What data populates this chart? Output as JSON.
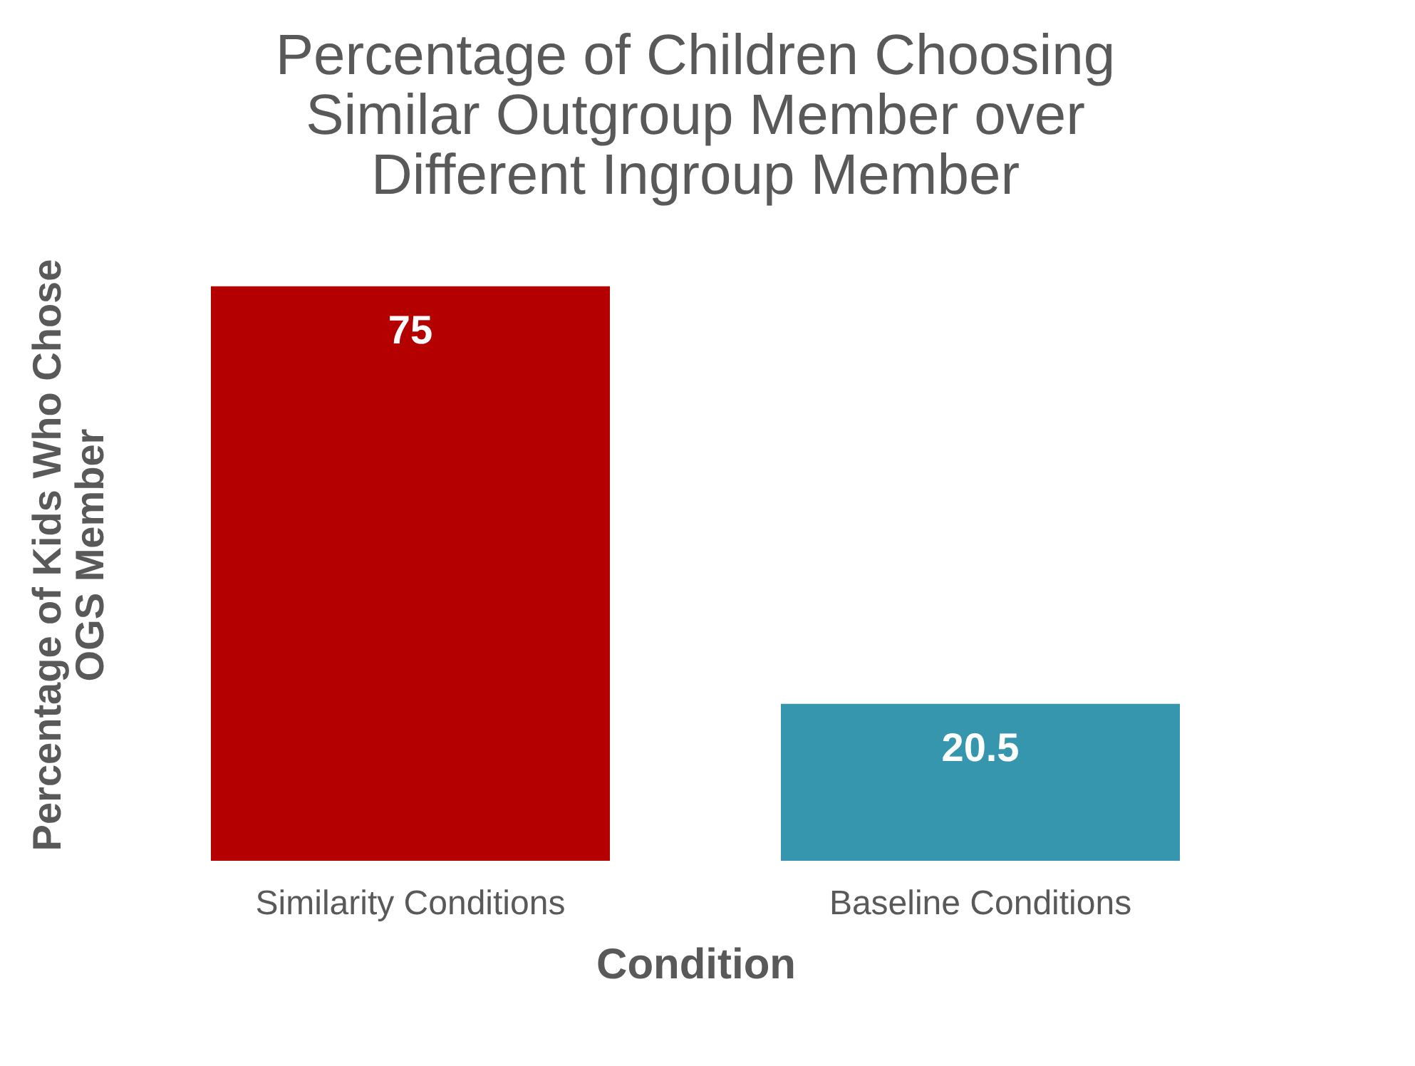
{
  "chart_data": {
    "type": "bar",
    "title": "Percentage of Children Choosing Similar Outgroup Member over Different Ingroup Member",
    "xlabel": "Condition",
    "ylabel": "Percentage of Kids Who Chose OGS Member",
    "categories": [
      "Similarity Conditions",
      "Baseline Conditions"
    ],
    "values": [
      75,
      20.5
    ],
    "colors": [
      "#b50000",
      "#3596ad"
    ],
    "data_labels": true,
    "grid": false,
    "tick_labels": "x"
  }
}
